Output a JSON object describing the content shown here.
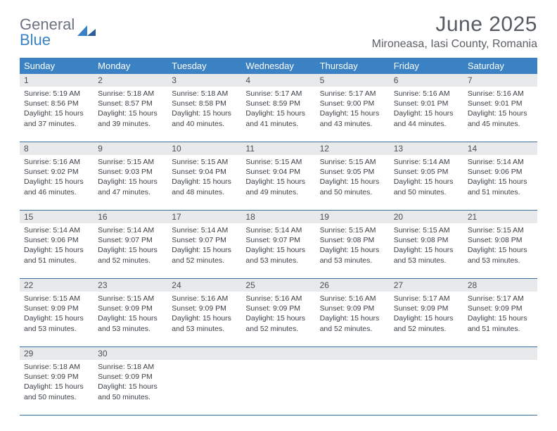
{
  "brand": {
    "line1": "General",
    "line2": "Blue"
  },
  "title": "June 2025",
  "location": "Mironeasa, Iasi County, Romania",
  "colors": {
    "header_bg": "#3b82c4",
    "header_text": "#ffffff",
    "daynum_bg": "#e8e9ea",
    "border": "#3b6ea0",
    "body_text": "#3d4247",
    "title_text": "#555c63"
  },
  "day_names": [
    "Sunday",
    "Monday",
    "Tuesday",
    "Wednesday",
    "Thursday",
    "Friday",
    "Saturday"
  ],
  "weeks": [
    [
      {
        "n": "1",
        "sr": "5:19 AM",
        "ss": "8:56 PM",
        "dl": "15 hours and 37 minutes."
      },
      {
        "n": "2",
        "sr": "5:18 AM",
        "ss": "8:57 PM",
        "dl": "15 hours and 39 minutes."
      },
      {
        "n": "3",
        "sr": "5:18 AM",
        "ss": "8:58 PM",
        "dl": "15 hours and 40 minutes."
      },
      {
        "n": "4",
        "sr": "5:17 AM",
        "ss": "8:59 PM",
        "dl": "15 hours and 41 minutes."
      },
      {
        "n": "5",
        "sr": "5:17 AM",
        "ss": "9:00 PM",
        "dl": "15 hours and 43 minutes."
      },
      {
        "n": "6",
        "sr": "5:16 AM",
        "ss": "9:01 PM",
        "dl": "15 hours and 44 minutes."
      },
      {
        "n": "7",
        "sr": "5:16 AM",
        "ss": "9:01 PM",
        "dl": "15 hours and 45 minutes."
      }
    ],
    [
      {
        "n": "8",
        "sr": "5:16 AM",
        "ss": "9:02 PM",
        "dl": "15 hours and 46 minutes."
      },
      {
        "n": "9",
        "sr": "5:15 AM",
        "ss": "9:03 PM",
        "dl": "15 hours and 47 minutes."
      },
      {
        "n": "10",
        "sr": "5:15 AM",
        "ss": "9:04 PM",
        "dl": "15 hours and 48 minutes."
      },
      {
        "n": "11",
        "sr": "5:15 AM",
        "ss": "9:04 PM",
        "dl": "15 hours and 49 minutes."
      },
      {
        "n": "12",
        "sr": "5:15 AM",
        "ss": "9:05 PM",
        "dl": "15 hours and 50 minutes."
      },
      {
        "n": "13",
        "sr": "5:14 AM",
        "ss": "9:05 PM",
        "dl": "15 hours and 50 minutes."
      },
      {
        "n": "14",
        "sr": "5:14 AM",
        "ss": "9:06 PM",
        "dl": "15 hours and 51 minutes."
      }
    ],
    [
      {
        "n": "15",
        "sr": "5:14 AM",
        "ss": "9:06 PM",
        "dl": "15 hours and 51 minutes."
      },
      {
        "n": "16",
        "sr": "5:14 AM",
        "ss": "9:07 PM",
        "dl": "15 hours and 52 minutes."
      },
      {
        "n": "17",
        "sr": "5:14 AM",
        "ss": "9:07 PM",
        "dl": "15 hours and 52 minutes."
      },
      {
        "n": "18",
        "sr": "5:14 AM",
        "ss": "9:07 PM",
        "dl": "15 hours and 53 minutes."
      },
      {
        "n": "19",
        "sr": "5:15 AM",
        "ss": "9:08 PM",
        "dl": "15 hours and 53 minutes."
      },
      {
        "n": "20",
        "sr": "5:15 AM",
        "ss": "9:08 PM",
        "dl": "15 hours and 53 minutes."
      },
      {
        "n": "21",
        "sr": "5:15 AM",
        "ss": "9:08 PM",
        "dl": "15 hours and 53 minutes."
      }
    ],
    [
      {
        "n": "22",
        "sr": "5:15 AM",
        "ss": "9:09 PM",
        "dl": "15 hours and 53 minutes."
      },
      {
        "n": "23",
        "sr": "5:15 AM",
        "ss": "9:09 PM",
        "dl": "15 hours and 53 minutes."
      },
      {
        "n": "24",
        "sr": "5:16 AM",
        "ss": "9:09 PM",
        "dl": "15 hours and 53 minutes."
      },
      {
        "n": "25",
        "sr": "5:16 AM",
        "ss": "9:09 PM",
        "dl": "15 hours and 52 minutes."
      },
      {
        "n": "26",
        "sr": "5:16 AM",
        "ss": "9:09 PM",
        "dl": "15 hours and 52 minutes."
      },
      {
        "n": "27",
        "sr": "5:17 AM",
        "ss": "9:09 PM",
        "dl": "15 hours and 52 minutes."
      },
      {
        "n": "28",
        "sr": "5:17 AM",
        "ss": "9:09 PM",
        "dl": "15 hours and 51 minutes."
      }
    ],
    [
      {
        "n": "29",
        "sr": "5:18 AM",
        "ss": "9:09 PM",
        "dl": "15 hours and 50 minutes."
      },
      {
        "n": "30",
        "sr": "5:18 AM",
        "ss": "9:09 PM",
        "dl": "15 hours and 50 minutes."
      },
      null,
      null,
      null,
      null,
      null
    ]
  ],
  "labels": {
    "sunrise": "Sunrise:",
    "sunset": "Sunset:",
    "daylight": "Daylight:"
  }
}
